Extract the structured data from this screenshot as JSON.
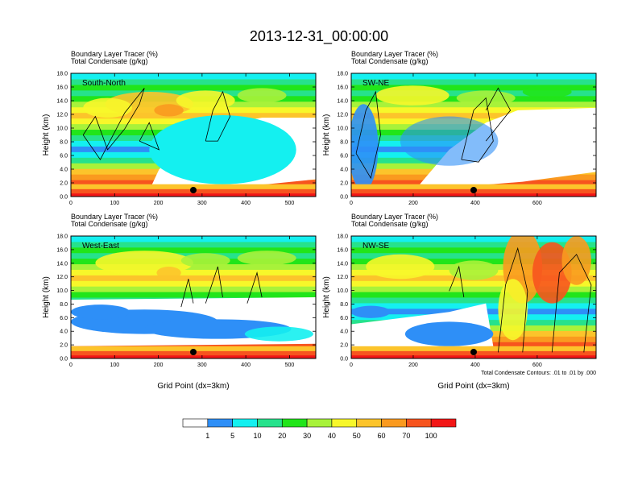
{
  "title": "2013-12-31_00:00:00",
  "chart_data": [
    {
      "type": "heatmap",
      "label_line1": "Boundary Layer Tracer   (%)",
      "label_line2": "Total Condensate   (g/kg)",
      "transect": "South-North",
      "ylabel": "Height (km)",
      "xlabel": "",
      "xlim": [
        0,
        560
      ],
      "ylim": [
        0,
        18
      ],
      "xticks": [
        "0",
        "100",
        "200",
        "300",
        "400",
        "500"
      ],
      "xtick_values": [
        0,
        100,
        200,
        300,
        400,
        500
      ],
      "yticks": [
        "0.0",
        "2.0",
        "4.0",
        "6.0",
        "8.0",
        "10.0",
        "12.0",
        "14.0",
        "16.0",
        "18.0"
      ],
      "marker_x": 280
    },
    {
      "type": "heatmap",
      "label_line1": "Boundary Layer Tracer   (%)",
      "label_line2": "Total Condensate   (g/kg)",
      "transect": "SW-NE",
      "ylabel": "Height (km)",
      "xlabel": "",
      "xlim": [
        0,
        790
      ],
      "ylim": [
        0,
        18
      ],
      "xticks": [
        "0",
        "200",
        "400",
        "600"
      ],
      "xtick_values": [
        0,
        200,
        400,
        600
      ],
      "yticks": [
        "0.0",
        "2.0",
        "4.0",
        "6.0",
        "8.0",
        "10.0",
        "12.0",
        "14.0",
        "16.0",
        "18.0"
      ],
      "marker_x": 395
    },
    {
      "type": "heatmap",
      "label_line1": "Boundary Layer Tracer   (%)",
      "label_line2": "Total Condensate   (g/kg)",
      "transect": "West-East",
      "ylabel": "Height (km)",
      "xlabel": "Grid Point (dx=3km)",
      "xlim": [
        0,
        560
      ],
      "ylim": [
        0,
        18
      ],
      "xticks": [
        "0",
        "100",
        "200",
        "300",
        "400",
        "500"
      ],
      "xtick_values": [
        0,
        100,
        200,
        300,
        400,
        500
      ],
      "yticks": [
        "0.0",
        "2.0",
        "4.0",
        "6.0",
        "8.0",
        "10.0",
        "12.0",
        "14.0",
        "16.0",
        "18.0"
      ],
      "marker_x": 280
    },
    {
      "type": "heatmap",
      "label_line1": "Boundary Layer Tracer   (%)",
      "label_line2": "Total Condensate   (g/kg)",
      "transect": "NW-SE",
      "ylabel": "Height (km)",
      "xlabel": "Grid Point (dx=3km)",
      "xlim": [
        0,
        790
      ],
      "ylim": [
        0,
        18
      ],
      "xticks": [
        "0",
        "200",
        "400",
        "600"
      ],
      "xtick_values": [
        0,
        200,
        400,
        600
      ],
      "yticks": [
        "0.0",
        "2.0",
        "4.0",
        "6.0",
        "8.0",
        "10.0",
        "12.0",
        "14.0",
        "16.0",
        "18.0"
      ],
      "marker_x": 395,
      "footnote": "Total Condensate Contours: .01 to .01 by .000"
    }
  ],
  "colorbar": {
    "labels": [
      "1",
      "5",
      "10",
      "20",
      "30",
      "40",
      "50",
      "60",
      "70",
      "100"
    ],
    "colors": [
      "#ffffff",
      "#2e8ff7",
      "#14f0f0",
      "#26e28c",
      "#21e51a",
      "#a8f23a",
      "#f7f72a",
      "#fcc42b",
      "#fa9a1f",
      "#f7541e",
      "#f21616"
    ]
  }
}
